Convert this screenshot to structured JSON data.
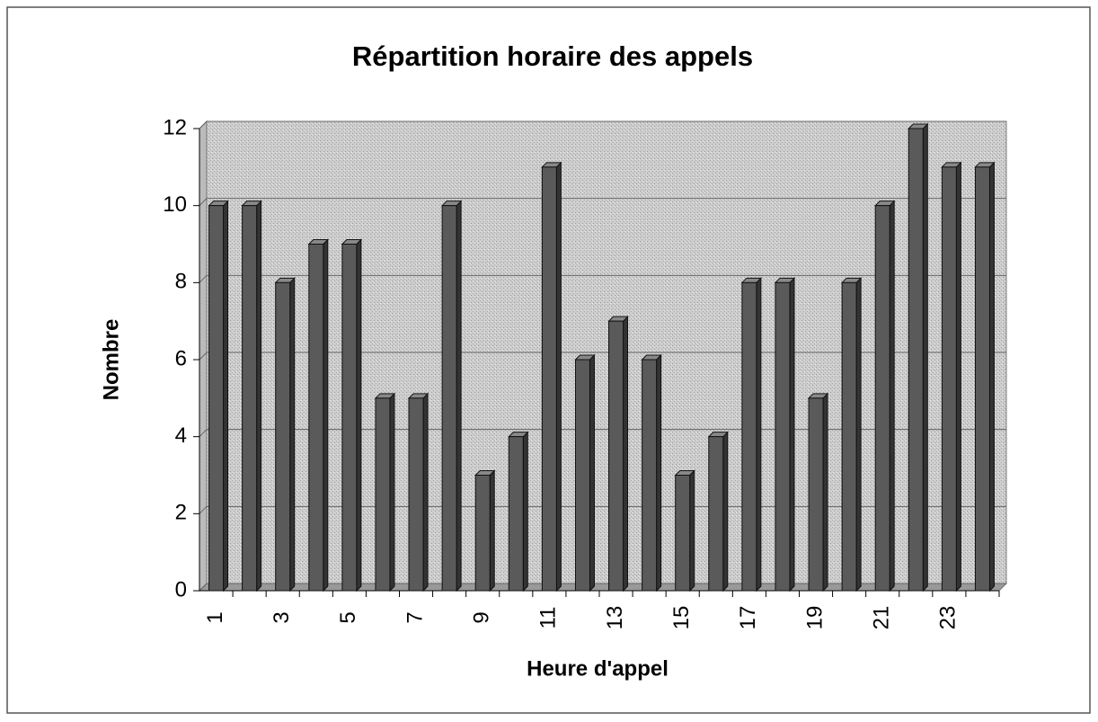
{
  "chart_data": {
    "type": "bar",
    "title": "Répartition horaire des appels",
    "x_label": "Heure d'appel",
    "y_label": "Nombre",
    "categories": [
      "1",
      null,
      "3",
      null,
      "5",
      null,
      "7",
      null,
      "9",
      null,
      "11",
      null,
      "13",
      null,
      "15",
      null,
      "17",
      null,
      "19",
      null,
      "21",
      null,
      "23",
      null
    ],
    "values": [
      10,
      10,
      8,
      9,
      9,
      5,
      5,
      10,
      3,
      4,
      11,
      6,
      7,
      6,
      3,
      4,
      8,
      8,
      5,
      8,
      10,
      12,
      11,
      11
    ],
    "color": "#5a5a5a",
    "ylim": [
      0,
      12
    ],
    "yticks": [
      0,
      2,
      4,
      6,
      8,
      10,
      12
    ],
    "grid": true
  }
}
